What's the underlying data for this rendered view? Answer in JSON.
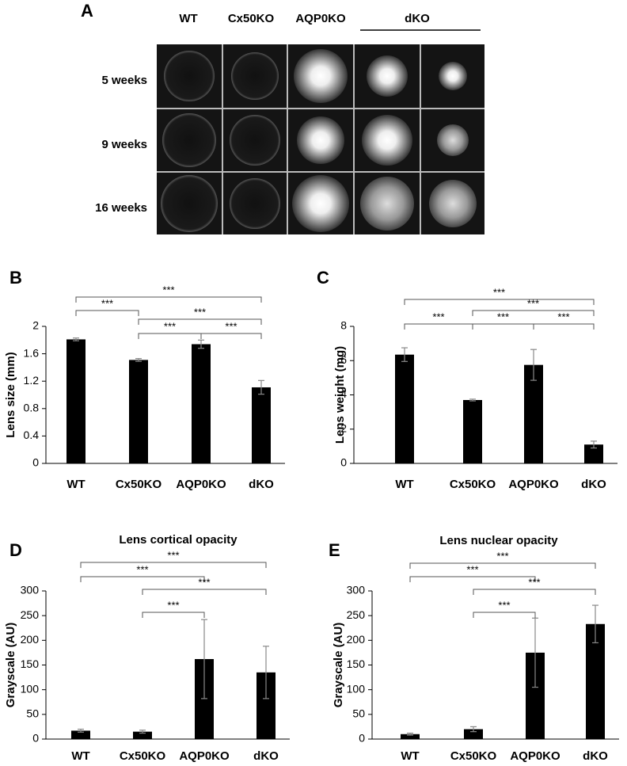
{
  "panel_a": {
    "letter": "A",
    "columns": [
      "WT",
      "Cx50KO",
      "AQP0KO",
      "dKO"
    ],
    "rows": [
      "5 weeks",
      "9 weeks",
      "16 weeks"
    ]
  },
  "chart_data": [
    {
      "type": "bar",
      "panel": "B",
      "ylabel": "Lens size (mm)",
      "categories": [
        "WT",
        "Cx50KO",
        "AQP0KO",
        "dKO"
      ],
      "values": [
        1.81,
        1.51,
        1.74,
        1.11
      ],
      "errors": [
        0.02,
        0.02,
        0.06,
        0.1
      ],
      "color": "#000000",
      "ylim": [
        0,
        2
      ],
      "yticks": [
        0,
        0.4,
        0.8,
        1.2,
        1.6,
        2
      ],
      "significance": [
        {
          "from": 0,
          "to": 3,
          "label": "***"
        },
        {
          "from": 0,
          "to": 1,
          "label": "***"
        },
        {
          "from": 1,
          "to": 3,
          "label": "***"
        },
        {
          "from": 1,
          "to": 2,
          "label": "***"
        },
        {
          "from": 2,
          "to": 3,
          "label": "***"
        }
      ]
    },
    {
      "type": "bar",
      "panel": "C",
      "ylabel": "Lens weight (mg)",
      "categories": [
        "WT",
        "Cx50KO",
        "AQP0KO",
        "dKO"
      ],
      "values": [
        6.35,
        3.7,
        5.75,
        1.1
      ],
      "errors": [
        0.4,
        0.05,
        0.9,
        0.2
      ],
      "color": "#000000",
      "ylim": [
        0,
        8
      ],
      "yticks": [
        0,
        2,
        4,
        6,
        8
      ],
      "significance": [
        {
          "from": 0,
          "to": 3,
          "label": "***"
        },
        {
          "from": 0,
          "to": 1,
          "label": "***"
        },
        {
          "from": 1,
          "to": 3,
          "label": "***"
        },
        {
          "from": 1,
          "to": 2,
          "label": "***"
        },
        {
          "from": 2,
          "to": 3,
          "label": "***"
        }
      ]
    },
    {
      "type": "bar",
      "panel": "D",
      "title": "Lens cortical opacity",
      "ylabel": "Grayscale (AU)",
      "categories": [
        "WT",
        "Cx50KO",
        "AQP0KO",
        "dKO"
      ],
      "values": [
        17,
        15,
        162,
        135
      ],
      "errors": [
        3,
        3,
        80,
        53
      ],
      "color": "#000000",
      "ylim": [
        0,
        300
      ],
      "yticks": [
        0,
        50,
        100,
        150,
        200,
        250,
        300
      ],
      "significance": [
        {
          "from": 0,
          "to": 3,
          "label": "***"
        },
        {
          "from": 0,
          "to": 2,
          "label": "***"
        },
        {
          "from": 1,
          "to": 3,
          "label": "***"
        },
        {
          "from": 1,
          "to": 2,
          "label": "***"
        }
      ]
    },
    {
      "type": "bar",
      "panel": "E",
      "title": "Lens nuclear opacity",
      "ylabel": "Grayscale (AU)",
      "categories": [
        "WT",
        "Cx50KO",
        "AQP0KO",
        "dKO"
      ],
      "values": [
        10,
        20,
        175,
        233
      ],
      "errors": [
        2,
        5,
        70,
        38
      ],
      "color": "#000000",
      "ylim": [
        0,
        300
      ],
      "yticks": [
        0,
        50,
        100,
        150,
        200,
        250,
        300
      ],
      "significance": [
        {
          "from": 0,
          "to": 3,
          "label": "***"
        },
        {
          "from": 0,
          "to": 2,
          "label": "***"
        },
        {
          "from": 1,
          "to": 3,
          "label": "***"
        },
        {
          "from": 1,
          "to": 2,
          "label": "***"
        }
      ]
    }
  ]
}
